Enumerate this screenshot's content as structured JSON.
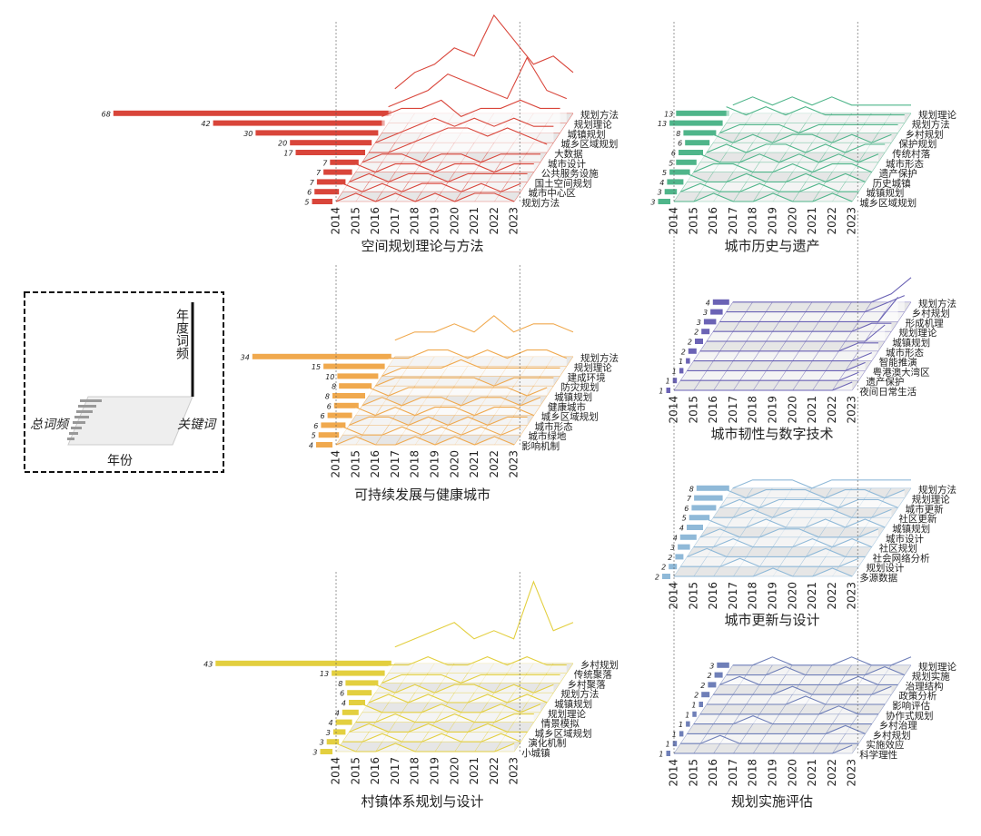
{
  "legend_box": {
    "y_label": "年度词频",
    "z_label": "关键词",
    "total_label": "总词频",
    "x_label": "年份"
  },
  "chart_data": [
    {
      "type": "line3d",
      "title": "空间规划理论与方法",
      "color": "#d9453a",
      "x": [
        2014,
        2015,
        2016,
        2017,
        2018,
        2019,
        2020,
        2021,
        2022,
        2023
      ],
      "series": [
        {
          "name": "规划方法",
          "total": 68,
          "values": [
            3,
            5,
            6,
            8,
            7,
            12,
            9,
            6,
            7,
            5
          ]
        },
        {
          "name": "规划理论",
          "total": 42,
          "values": [
            2,
            3,
            4,
            6,
            5,
            4,
            3,
            8,
            4,
            3
          ]
        },
        {
          "name": "城镇规划",
          "total": 30,
          "values": [
            2,
            3,
            3,
            4,
            2,
            3,
            3,
            4,
            3,
            3
          ]
        },
        {
          "name": "城乡区域规划",
          "total": 20,
          "values": [
            0,
            1,
            2,
            3,
            2,
            3,
            2,
            3,
            2,
            2
          ]
        },
        {
          "name": "大数据",
          "total": 17,
          "values": [
            0,
            0,
            1,
            2,
            3,
            3,
            2,
            3,
            2,
            1
          ]
        },
        {
          "name": "城市设计",
          "total": 7,
          "values": [
            0,
            1,
            1,
            0,
            1,
            1,
            0,
            1,
            1,
            1
          ]
        },
        {
          "name": "公共服务设施",
          "total": 7,
          "values": [
            1,
            0,
            1,
            1,
            0,
            1,
            1,
            0,
            1,
            1
          ]
        },
        {
          "name": "国土空间规划",
          "total": 7,
          "values": [
            0,
            1,
            0,
            1,
            1,
            0,
            1,
            1,
            1,
            1
          ]
        },
        {
          "name": "城市中心区",
          "total": 6,
          "values": [
            1,
            0,
            1,
            0,
            1,
            1,
            0,
            1,
            0,
            1
          ]
        },
        {
          "name": "规划方法",
          "total": 5,
          "values": [
            0,
            1,
            0,
            1,
            0,
            1,
            0,
            1,
            1,
            0
          ]
        }
      ]
    },
    {
      "type": "line3d",
      "title": "城市历史与遗产",
      "color": "#4fb58a",
      "x": [
        2014,
        2015,
        2016,
        2017,
        2018,
        2019,
        2020,
        2021,
        2022,
        2023
      ],
      "series": [
        {
          "name": "规划理论",
          "total": 13,
          "values": [
            1,
            2,
            1,
            2,
            1,
            2,
            1,
            1,
            1,
            1
          ]
        },
        {
          "name": "规划方法",
          "total": 13,
          "values": [
            2,
            1,
            2,
            1,
            2,
            1,
            1,
            1,
            1,
            1
          ]
        },
        {
          "name": "乡村规划",
          "total": 8,
          "values": [
            0,
            1,
            1,
            1,
            0,
            1,
            1,
            1,
            1,
            1
          ]
        },
        {
          "name": "保护规划",
          "total": 6,
          "values": [
            1,
            0,
            1,
            0,
            1,
            1,
            0,
            1,
            0,
            1
          ]
        },
        {
          "name": "传统村落",
          "total": 6,
          "values": [
            0,
            1,
            0,
            1,
            1,
            0,
            1,
            0,
            1,
            1
          ]
        },
        {
          "name": "城市形态",
          "total": 5,
          "values": [
            1,
            0,
            0,
            1,
            0,
            1,
            0,
            1,
            0,
            1
          ]
        },
        {
          "name": "遗产保护",
          "total": 5,
          "values": [
            0,
            1,
            1,
            0,
            0,
            1,
            0,
            1,
            1,
            0
          ]
        },
        {
          "name": "历史城镇",
          "total": 4,
          "values": [
            1,
            0,
            0,
            1,
            0,
            0,
            1,
            0,
            1,
            0
          ]
        },
        {
          "name": "城镇规划",
          "total": 3,
          "values": [
            0,
            1,
            0,
            0,
            1,
            0,
            0,
            1,
            0,
            0
          ]
        },
        {
          "name": "城乡区域规划",
          "total": 3,
          "values": [
            0,
            0,
            1,
            0,
            0,
            1,
            0,
            0,
            1,
            0
          ]
        }
      ]
    },
    {
      "type": "line3d",
      "title": "可持续发展与健康城市",
      "color": "#f0a94e",
      "x": [
        2014,
        2015,
        2016,
        2017,
        2018,
        2019,
        2020,
        2021,
        2022,
        2023
      ],
      "series": [
        {
          "name": "规划方法",
          "total": 34,
          "values": [
            2,
            3,
            3,
            4,
            3,
            5,
            3,
            4,
            4,
            3
          ]
        },
        {
          "name": "规划理论",
          "total": 15,
          "values": [
            1,
            1,
            2,
            2,
            1,
            2,
            1,
            2,
            2,
            1
          ]
        },
        {
          "name": "建成环境",
          "total": 10,
          "values": [
            0,
            1,
            1,
            1,
            2,
            1,
            1,
            1,
            1,
            1
          ]
        },
        {
          "name": "防灾规划",
          "total": 8,
          "values": [
            0,
            1,
            1,
            1,
            1,
            1,
            0,
            1,
            1,
            1
          ]
        },
        {
          "name": "城镇规划",
          "total": 8,
          "values": [
            1,
            0,
            1,
            1,
            1,
            1,
            1,
            1,
            0,
            1
          ]
        },
        {
          "name": "健康城市",
          "total": 6,
          "values": [
            0,
            1,
            0,
            1,
            1,
            0,
            1,
            1,
            0,
            1
          ]
        },
        {
          "name": "城乡区域规划",
          "total": 6,
          "values": [
            1,
            0,
            1,
            0,
            1,
            1,
            0,
            1,
            1,
            0
          ]
        },
        {
          "name": "城市形态",
          "total": 6,
          "values": [
            0,
            1,
            1,
            0,
            1,
            0,
            1,
            0,
            1,
            1
          ]
        },
        {
          "name": "城市绿地",
          "total": 5,
          "values": [
            1,
            0,
            0,
            1,
            0,
            1,
            0,
            1,
            0,
            1
          ]
        },
        {
          "name": "影响机制",
          "total": 4,
          "values": [
            0,
            1,
            0,
            0,
            1,
            0,
            1,
            0,
            1,
            0
          ]
        }
      ]
    },
    {
      "type": "line3d",
      "title": "城市韧性与数字技术",
      "color": "#6b63b5",
      "x": [
        2014,
        2015,
        2016,
        2017,
        2018,
        2019,
        2020,
        2021,
        2022,
        2023
      ],
      "series": [
        {
          "name": "规划方法",
          "total": 4,
          "values": [
            0,
            0,
            0,
            0,
            0,
            0,
            0,
            0,
            1,
            3
          ]
        },
        {
          "name": "乡村规划",
          "total": 3,
          "values": [
            0,
            0,
            0,
            0,
            0,
            0,
            0,
            0,
            1,
            2
          ]
        },
        {
          "name": "形成机理",
          "total": 3,
          "values": [
            0,
            0,
            0,
            0,
            0,
            0,
            0,
            0,
            0,
            3
          ]
        },
        {
          "name": "规划理论",
          "total": 2,
          "values": [
            0,
            0,
            0,
            0,
            0,
            0,
            0,
            0,
            1,
            1
          ]
        },
        {
          "name": "城镇规划",
          "total": 2,
          "values": [
            0,
            0,
            0,
            0,
            0,
            0,
            0,
            0,
            0,
            2
          ]
        },
        {
          "name": "城市形态",
          "total": 2,
          "values": [
            0,
            0,
            0,
            0,
            0,
            0,
            0,
            0,
            1,
            1
          ]
        },
        {
          "name": "智能推演",
          "total": 1,
          "values": [
            0,
            0,
            0,
            0,
            0,
            0,
            0,
            0,
            0,
            1
          ]
        },
        {
          "name": "粤港澳大湾区",
          "total": 1,
          "values": [
            0,
            0,
            0,
            0,
            0,
            0,
            0,
            0,
            0,
            1
          ]
        },
        {
          "name": "遗产保护",
          "total": 1,
          "values": [
            0,
            0,
            0,
            0,
            0,
            0,
            0,
            0,
            0,
            1
          ]
        },
        {
          "name": "夜间日常生活",
          "total": 1,
          "values": [
            0,
            0,
            0,
            0,
            0,
            0,
            0,
            0,
            0,
            1
          ]
        }
      ]
    },
    {
      "type": "line3d",
      "title": "城市更新与设计",
      "color": "#8fb9d8",
      "x": [
        2014,
        2015,
        2016,
        2017,
        2018,
        2019,
        2020,
        2021,
        2022,
        2023
      ],
      "series": [
        {
          "name": "规划方法",
          "total": 8,
          "values": [
            0,
            1,
            1,
            1,
            0,
            1,
            1,
            1,
            1,
            1
          ]
        },
        {
          "name": "规划理论",
          "total": 7,
          "values": [
            1,
            0,
            1,
            1,
            1,
            0,
            1,
            1,
            0,
            1
          ]
        },
        {
          "name": "城市更新",
          "total": 6,
          "values": [
            0,
            1,
            0,
            1,
            1,
            1,
            0,
            1,
            1,
            0
          ]
        },
        {
          "name": "社区更新",
          "total": 5,
          "values": [
            0,
            0,
            1,
            0,
            1,
            1,
            1,
            0,
            0,
            1
          ]
        },
        {
          "name": "城镇规划",
          "total": 4,
          "values": [
            1,
            0,
            0,
            1,
            0,
            0,
            1,
            0,
            1,
            0
          ]
        },
        {
          "name": "城市设计",
          "total": 4,
          "values": [
            0,
            1,
            0,
            0,
            1,
            1,
            0,
            0,
            0,
            1
          ]
        },
        {
          "name": "社区规划",
          "total": 3,
          "values": [
            0,
            0,
            1,
            0,
            0,
            0,
            1,
            0,
            1,
            0
          ]
        },
        {
          "name": "社会网络分析",
          "total": 2,
          "values": [
            0,
            1,
            0,
            0,
            0,
            0,
            0,
            1,
            0,
            0
          ]
        },
        {
          "name": "规划设计",
          "total": 2,
          "values": [
            0,
            0,
            0,
            1,
            0,
            0,
            0,
            0,
            0,
            1
          ]
        },
        {
          "name": "多源数据",
          "total": 2,
          "values": [
            0,
            0,
            0,
            0,
            0,
            1,
            0,
            0,
            1,
            0
          ]
        }
      ]
    },
    {
      "type": "line3d",
      "title": "村镇体系规划与设计",
      "color": "#e3cf3f",
      "x": [
        2014,
        2015,
        2016,
        2017,
        2018,
        2019,
        2020,
        2021,
        2022,
        2023
      ],
      "series": [
        {
          "name": "乡村规划",
          "total": 43,
          "values": [
            2,
            3,
            4,
            5,
            3,
            4,
            3,
            10,
            4,
            5
          ]
        },
        {
          "name": "传统聚落",
          "total": 13,
          "values": [
            1,
            1,
            2,
            1,
            1,
            2,
            1,
            2,
            1,
            1
          ]
        },
        {
          "name": "乡村聚落",
          "total": 8,
          "values": [
            0,
            1,
            1,
            1,
            0,
            1,
            1,
            1,
            1,
            1
          ]
        },
        {
          "name": "规划方法",
          "total": 6,
          "values": [
            1,
            0,
            1,
            0,
            1,
            1,
            0,
            1,
            0,
            1
          ]
        },
        {
          "name": "城镇规划",
          "total": 4,
          "values": [
            0,
            1,
            0,
            1,
            0,
            0,
            1,
            0,
            1,
            0
          ]
        },
        {
          "name": "规划理论",
          "total": 4,
          "values": [
            1,
            0,
            0,
            0,
            1,
            0,
            0,
            1,
            0,
            1
          ]
        },
        {
          "name": "情景模拟",
          "total": 4,
          "values": [
            0,
            0,
            1,
            0,
            0,
            1,
            0,
            0,
            1,
            1
          ]
        },
        {
          "name": "城乡区域规划",
          "total": 3,
          "values": [
            0,
            1,
            0,
            0,
            1,
            0,
            0,
            1,
            0,
            0
          ]
        },
        {
          "name": "演化机制",
          "total": 3,
          "values": [
            0,
            0,
            1,
            0,
            0,
            1,
            0,
            0,
            1,
            0
          ]
        },
        {
          "name": "小城镇",
          "total": 3,
          "values": [
            1,
            0,
            0,
            1,
            0,
            0,
            0,
            0,
            0,
            1
          ]
        }
      ]
    },
    {
      "type": "line3d",
      "title": "规划实施评估",
      "color": "#6f7fb8",
      "x": [
        2014,
        2015,
        2016,
        2017,
        2018,
        2019,
        2020,
        2021,
        2022,
        2023
      ],
      "series": [
        {
          "name": "规划理论",
          "total": 3,
          "values": [
            0,
            0,
            1,
            0,
            0,
            0,
            1,
            0,
            0,
            1
          ]
        },
        {
          "name": "规划实施",
          "total": 2,
          "values": [
            0,
            0,
            0,
            1,
            0,
            0,
            0,
            0,
            1,
            0
          ]
        },
        {
          "name": "治理结构",
          "total": 2,
          "values": [
            0,
            1,
            0,
            0,
            0,
            0,
            0,
            1,
            0,
            0
          ]
        },
        {
          "name": "政策分析",
          "total": 2,
          "values": [
            0,
            0,
            0,
            0,
            1,
            0,
            0,
            0,
            0,
            1
          ]
        },
        {
          "name": "影响评估",
          "total": 1,
          "values": [
            0,
            0,
            0,
            0,
            0,
            1,
            0,
            0,
            0,
            0
          ]
        },
        {
          "name": "协作式规划",
          "total": 1,
          "values": [
            0,
            0,
            0,
            0,
            0,
            0,
            0,
            1,
            0,
            0
          ]
        },
        {
          "name": "乡村治理",
          "total": 1,
          "values": [
            0,
            0,
            0,
            1,
            0,
            0,
            0,
            0,
            0,
            0
          ]
        },
        {
          "name": "乡村规划",
          "total": 1,
          "values": [
            0,
            0,
            0,
            0,
            0,
            0,
            0,
            0,
            1,
            0
          ]
        },
        {
          "name": "实施效应",
          "total": 1,
          "values": [
            0,
            0,
            1,
            0,
            0,
            0,
            0,
            0,
            0,
            0
          ]
        },
        {
          "name": "科学理性",
          "total": 1,
          "values": [
            0,
            0,
            0,
            0,
            0,
            0,
            0,
            0,
            0,
            1
          ]
        }
      ]
    }
  ]
}
